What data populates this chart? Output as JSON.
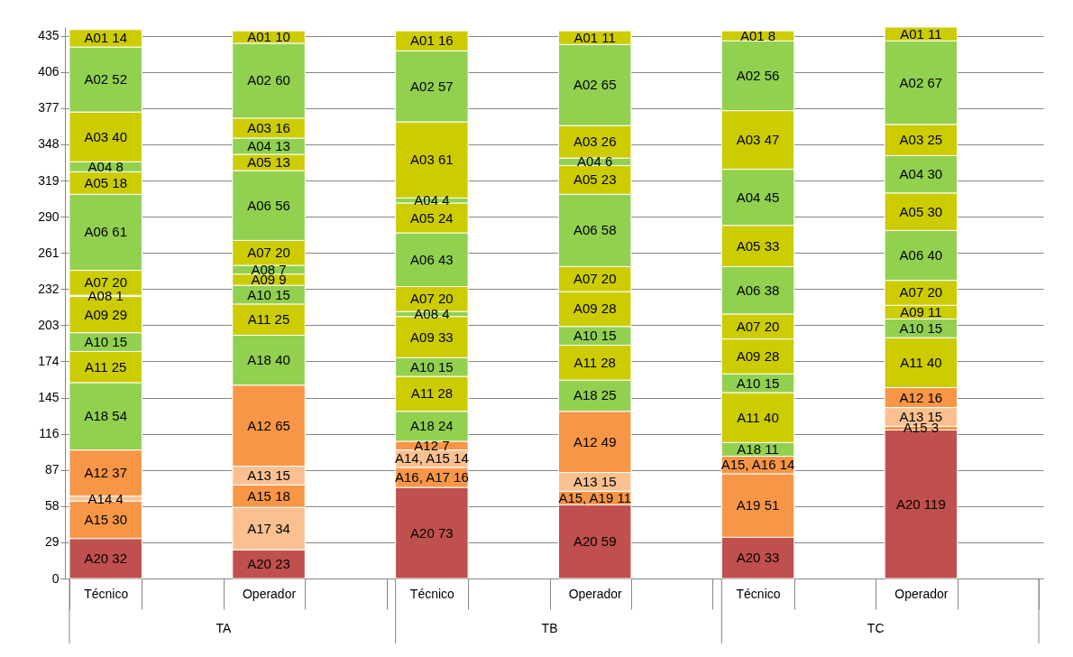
{
  "chart_data": {
    "type": "bar",
    "stacked": true,
    "categories": [
      "Técnico",
      null,
      "Operador",
      null,
      "Técnico",
      null,
      "Operador",
      null,
      "Técnico",
      null,
      "Operador",
      null
    ],
    "annotations": [
      "TA",
      "TB",
      "TC"
    ],
    "ylim": [
      0,
      442
    ],
    "yticks": [
      0,
      29,
      58,
      87,
      116,
      145,
      174,
      203,
      232,
      261,
      290,
      319,
      348,
      377,
      406,
      435
    ],
    "grid": "y",
    "series": [
      {
        "color": "#c0504d",
        "values": [
          32,
          null,
          23,
          null,
          73,
          null,
          59,
          null,
          33,
          null,
          119,
          null
        ],
        "value_labels": [
          "A20 32",
          null,
          "A20 23",
          null,
          "A20 73",
          null,
          "A20 59",
          null,
          "A20 33",
          null,
          "A20 119",
          null
        ]
      },
      {
        "color": "#f79646",
        "values": [
          null,
          null,
          null,
          null,
          null,
          null,
          11,
          null,
          51,
          null,
          null,
          null
        ],
        "value_labels": [
          null,
          null,
          null,
          null,
          null,
          null,
          "A15, A19 11",
          null,
          "A19 51",
          null,
          null,
          null
        ]
      },
      {
        "color": "#fac090",
        "values": [
          null,
          null,
          34,
          null,
          null,
          null,
          null,
          null,
          null,
          null,
          null,
          null
        ],
        "value_labels": [
          null,
          null,
          "A17 34",
          null,
          null,
          null,
          null,
          null,
          null,
          null,
          null,
          null
        ]
      },
      {
        "color": "#f79646",
        "values": [
          null,
          null,
          null,
          null,
          16,
          null,
          null,
          null,
          14,
          null,
          null,
          null
        ],
        "value_labels": [
          null,
          null,
          null,
          null,
          "A16, A17 16",
          null,
          null,
          null,
          "A15, A16 14",
          null,
          null,
          null
        ]
      },
      {
        "color": "#f79646",
        "values": [
          30,
          null,
          18,
          null,
          null,
          null,
          null,
          null,
          null,
          null,
          3,
          null
        ],
        "value_labels": [
          "A15 30",
          null,
          "A15 18",
          null,
          null,
          null,
          null,
          null,
          null,
          null,
          "A15 3",
          null
        ]
      },
      {
        "color": "#fac090",
        "values": [
          4,
          null,
          null,
          null,
          14,
          null,
          null,
          null,
          null,
          null,
          null,
          null
        ],
        "value_labels": [
          "A14 4",
          null,
          null,
          null,
          "A14, A15 14",
          null,
          null,
          null,
          null,
          null,
          null,
          null
        ]
      },
      {
        "color": "#fac090",
        "values": [
          null,
          null,
          15,
          null,
          null,
          null,
          15,
          null,
          null,
          null,
          15,
          null
        ],
        "value_labels": [
          null,
          null,
          "A13 15",
          null,
          null,
          null,
          "A13 15",
          null,
          null,
          null,
          "A13 15",
          null
        ]
      },
      {
        "color": "#f79646",
        "values": [
          37,
          null,
          65,
          null,
          7,
          null,
          49,
          null,
          null,
          null,
          16,
          null
        ],
        "value_labels": [
          "A12 37",
          null,
          "A12 65",
          null,
          "A12 7",
          null,
          "A12 49",
          null,
          null,
          null,
          "A12 16",
          null
        ]
      },
      {
        "color": "#92d050",
        "values": [
          54,
          null,
          40,
          null,
          24,
          null,
          25,
          null,
          11,
          null,
          null,
          null
        ],
        "value_labels": [
          "A18 54",
          null,
          "A18 40",
          null,
          "A18 24",
          null,
          "A18 25",
          null,
          "A18 11",
          null,
          null,
          null
        ]
      },
      {
        "color": "#cccc00",
        "values": [
          25,
          null,
          25,
          null,
          28,
          null,
          28,
          null,
          40,
          null,
          40,
          null
        ],
        "value_labels": [
          "A11 25",
          null,
          "A11 25",
          null,
          "A11 28",
          null,
          "A11 28",
          null,
          "A11 40",
          null,
          "A11 40",
          null
        ]
      },
      {
        "color": "#92d050",
        "values": [
          15,
          null,
          15,
          null,
          15,
          null,
          15,
          null,
          15,
          null,
          15,
          null
        ],
        "value_labels": [
          "A10 15",
          null,
          "A10 15",
          null,
          "A10 15",
          null,
          "A10 15",
          null,
          "A10 15",
          null,
          "A10 15",
          null
        ]
      },
      {
        "color": "#cccc00",
        "values": [
          29,
          null,
          9,
          null,
          33,
          null,
          28,
          null,
          28,
          null,
          11,
          null
        ],
        "value_labels": [
          "A09 29",
          null,
          "A09 9",
          null,
          "A09 33",
          null,
          "A09 28",
          null,
          "A09 28",
          null,
          "A09 11",
          null
        ]
      },
      {
        "color": "#92d050",
        "values": [
          1,
          null,
          7,
          null,
          4,
          null,
          null,
          null,
          null,
          null,
          null,
          null
        ],
        "value_labels": [
          "A08 1",
          null,
          "A08 7",
          null,
          "A08 4",
          null,
          null,
          null,
          null,
          null,
          null,
          null
        ]
      },
      {
        "color": "#cccc00",
        "values": [
          20,
          null,
          20,
          null,
          20,
          null,
          20,
          null,
          20,
          null,
          20,
          null
        ],
        "value_labels": [
          "A07 20",
          null,
          "A07 20",
          null,
          "A07 20",
          null,
          "A07 20",
          null,
          "A07 20",
          null,
          "A07 20",
          null
        ]
      },
      {
        "color": "#92d050",
        "values": [
          61,
          null,
          56,
          null,
          43,
          null,
          58,
          null,
          38,
          null,
          40,
          null
        ],
        "value_labels": [
          "A06 61",
          null,
          "A06 56",
          null,
          "A06 43",
          null,
          "A06 58",
          null,
          "A06 38",
          null,
          "A06 40",
          null
        ]
      },
      {
        "color": "#cccc00",
        "values": [
          18,
          null,
          13,
          null,
          24,
          null,
          23,
          null,
          33,
          null,
          30,
          null
        ],
        "value_labels": [
          "A05 18",
          null,
          "A05 13",
          null,
          "A05 24",
          null,
          "A05 23",
          null,
          "A05 33",
          null,
          "A05 30",
          null
        ]
      },
      {
        "color": "#92d050",
        "values": [
          8,
          null,
          13,
          null,
          4,
          null,
          6,
          null,
          45,
          null,
          30,
          null
        ],
        "value_labels": [
          "A04 8",
          null,
          "A04 13",
          null,
          "A04 4",
          null,
          "A04 6",
          null,
          "A04 45",
          null,
          "A04 30",
          null
        ]
      },
      {
        "color": "#cccc00",
        "values": [
          40,
          null,
          16,
          null,
          61,
          null,
          26,
          null,
          47,
          null,
          25,
          null
        ],
        "value_labels": [
          "A03 40",
          null,
          "A03 16",
          null,
          "A03 61",
          null,
          "A03 26",
          null,
          "A03 47",
          null,
          "A03 25",
          null
        ]
      },
      {
        "color": "#92d050",
        "values": [
          52,
          null,
          60,
          null,
          57,
          null,
          65,
          null,
          56,
          null,
          67,
          null
        ],
        "value_labels": [
          "A02 52",
          null,
          "A02 60",
          null,
          "A02 57",
          null,
          "A02 65",
          null,
          "A02 56",
          null,
          "A02 67",
          null
        ]
      },
      {
        "color": "#cccc00",
        "values": [
          14,
          null,
          10,
          null,
          16,
          null,
          11,
          null,
          8,
          null,
          11,
          null
        ],
        "value_labels": [
          "A01 14",
          null,
          "A01 10",
          null,
          "A01 16",
          null,
          "A01 11",
          null,
          "A01 8",
          null,
          "A01 11",
          null
        ]
      }
    ]
  }
}
